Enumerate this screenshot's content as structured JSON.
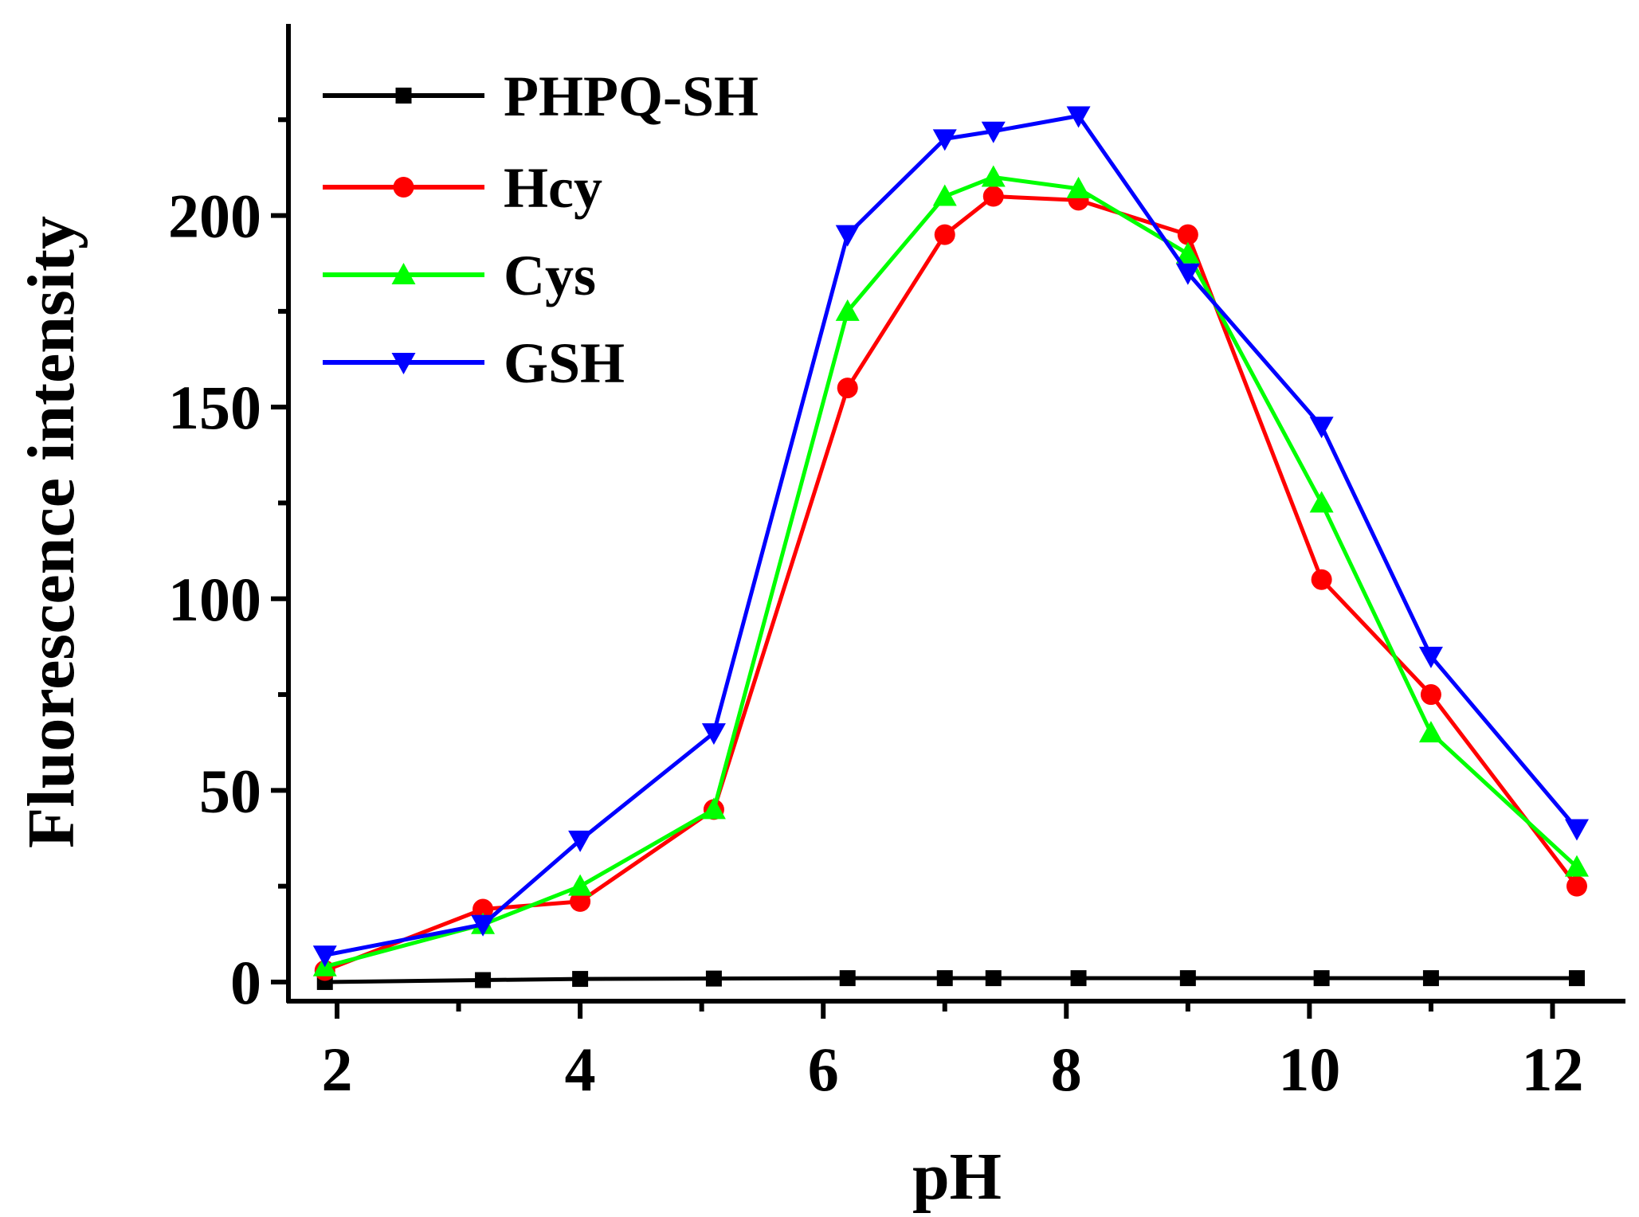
{
  "chart_data": {
    "type": "line",
    "title": "",
    "xlabel": "pH",
    "ylabel": "Fluorescence intensity",
    "xlim": [
      1.6,
      12.6
    ],
    "ylim": [
      -5,
      250
    ],
    "x_ticks": [
      2,
      4,
      6,
      8,
      10,
      12
    ],
    "x_tick_labels": [
      "2",
      "4",
      "6",
      "8",
      "10",
      "12"
    ],
    "y_ticks": [
      0,
      50,
      100,
      150,
      200
    ],
    "y_tick_labels": [
      "0",
      "50",
      "100",
      "150",
      "200"
    ],
    "grid": false,
    "legend_position": "top-left",
    "x": [
      1.9,
      3.2,
      4.0,
      5.1,
      6.2,
      7.0,
      7.4,
      8.1,
      9.0,
      10.1,
      11.0,
      12.2
    ],
    "series": [
      {
        "name": "PHPQ-SH",
        "color": "#000000",
        "marker": "square",
        "values": [
          0,
          0.5,
          0.8,
          0.9,
          1,
          1,
          1,
          1,
          1,
          1,
          1,
          1
        ]
      },
      {
        "name": "Hcy",
        "color": "#ff0000",
        "marker": "circle",
        "values": [
          3,
          19,
          21,
          45,
          155,
          195,
          205,
          204,
          195,
          105,
          75,
          25
        ]
      },
      {
        "name": "Cys",
        "color": "#00ff00",
        "marker": "triangle-up",
        "values": [
          4,
          15,
          25,
          45,
          175,
          205,
          210,
          207,
          190,
          125,
          65,
          30
        ]
      },
      {
        "name": "GSH",
        "color": "#0000ff",
        "marker": "triangle-down",
        "values": [
          7,
          15,
          37,
          65,
          195,
          220,
          222,
          226,
          185,
          145,
          85,
          40
        ]
      }
    ]
  }
}
